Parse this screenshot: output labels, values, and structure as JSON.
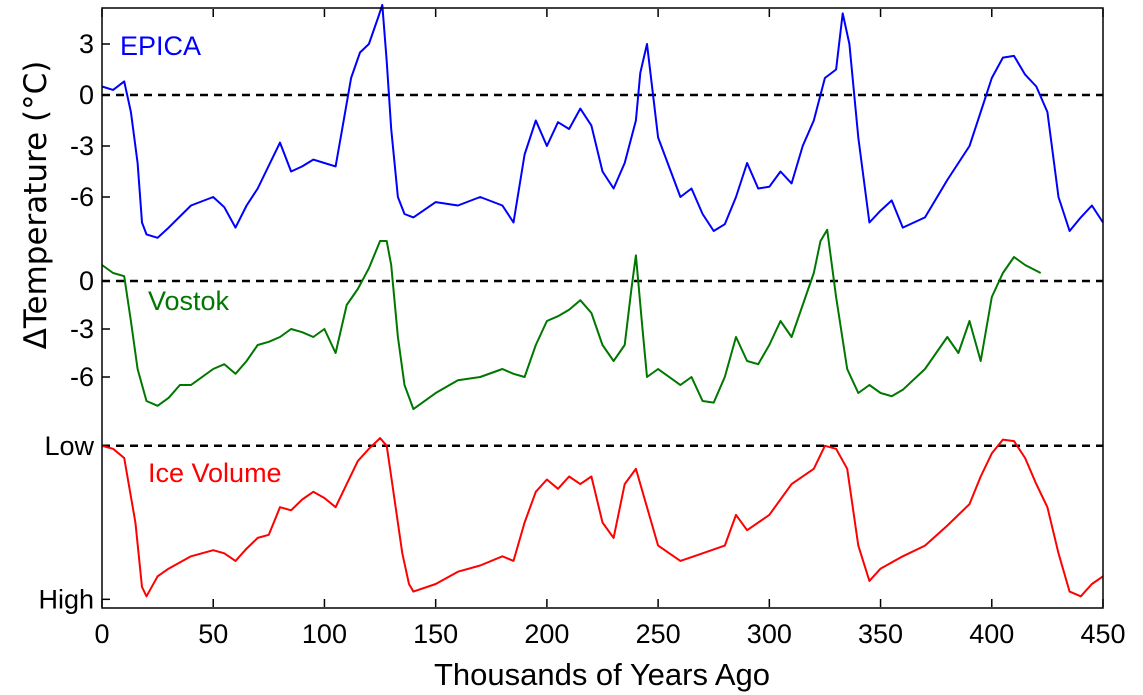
{
  "chart_data": {
    "type": "line",
    "title": "",
    "xlabel": "Thousands of Years Ago",
    "ylabel": "ΔTemperature (°C)",
    "xlim": [
      0,
      450
    ],
    "x_ticks": [
      "0",
      "50",
      "100",
      "150",
      "200",
      "250",
      "300",
      "350",
      "400",
      "450"
    ],
    "grid": false,
    "panels": [
      {
        "name": "EPICA",
        "color": "#0000ff",
        "y_ticks": [
          "3",
          "0",
          "-3",
          "-6"
        ],
        "y_tick_values": [
          3,
          0,
          -3,
          -6
        ],
        "ylim": [
          -9,
          5
        ],
        "reference_line": 0,
        "x": [
          0,
          5,
          10,
          13,
          16,
          18,
          20,
          25,
          30,
          40,
          50,
          55,
          60,
          65,
          70,
          80,
          85,
          90,
          95,
          100,
          105,
          108,
          112,
          116,
          120,
          124,
          126,
          128,
          130,
          133,
          136,
          140,
          150,
          160,
          170,
          180,
          185,
          190,
          195,
          200,
          205,
          210,
          215,
          220,
          225,
          230,
          235,
          240,
          242,
          245,
          250,
          260,
          265,
          270,
          275,
          280,
          285,
          290,
          295,
          300,
          305,
          310,
          315,
          320,
          325,
          330,
          333,
          336,
          340,
          345,
          350,
          355,
          360,
          370,
          380,
          390,
          395,
          400,
          405,
          410,
          415,
          420,
          425,
          430,
          435,
          440,
          445,
          450
        ],
        "values": [
          0.5,
          0.3,
          0.8,
          -1,
          -4,
          -7.5,
          -8.2,
          -8.4,
          -7.8,
          -6.5,
          -6.0,
          -6.6,
          -7.8,
          -6.5,
          -5.5,
          -2.8,
          -4.5,
          -4.2,
          -3.8,
          -4.0,
          -4.2,
          -2.0,
          1.0,
          2.5,
          3.0,
          4.5,
          5.3,
          2.0,
          -2.0,
          -6.0,
          -7.0,
          -7.2,
          -6.3,
          -6.5,
          -6.0,
          -6.5,
          -7.5,
          -3.5,
          -1.5,
          -3.0,
          -1.6,
          -2.0,
          -0.8,
          -1.8,
          -4.5,
          -5.5,
          -4.0,
          -1.5,
          1.3,
          3.0,
          -2.5,
          -6.0,
          -5.5,
          -7.0,
          -8.0,
          -7.6,
          -6.0,
          -4.0,
          -5.5,
          -5.4,
          -4.5,
          -5.2,
          -3.0,
          -1.5,
          1.0,
          1.5,
          4.8,
          3.0,
          -2.5,
          -7.5,
          -6.8,
          -6.2,
          -7.8,
          -7.2,
          -5.0,
          -3.0,
          -1.0,
          1.0,
          2.2,
          2.3,
          1.2,
          0.5,
          -1.0,
          -6.0,
          -8.0,
          -7.2,
          -6.5,
          -7.5
        ]
      },
      {
        "name": "Vostok",
        "color": "#007700",
        "y_ticks": [
          "0",
          "-3",
          "-6"
        ],
        "y_tick_values": [
          0,
          -3,
          -6
        ],
        "ylim": [
          -9,
          3.5
        ],
        "reference_line": 0,
        "x": [
          0,
          5,
          10,
          13,
          16,
          20,
          25,
          30,
          35,
          40,
          50,
          55,
          60,
          65,
          70,
          75,
          80,
          85,
          90,
          95,
          100,
          105,
          110,
          115,
          120,
          125,
          128,
          130,
          133,
          136,
          140,
          150,
          160,
          170,
          180,
          185,
          190,
          195,
          200,
          205,
          210,
          215,
          220,
          225,
          230,
          235,
          238,
          240,
          243,
          245,
          250,
          260,
          265,
          270,
          275,
          280,
          285,
          290,
          295,
          300,
          305,
          310,
          315,
          320,
          323,
          326,
          330,
          335,
          340,
          345,
          350,
          355,
          360,
          370,
          380,
          385,
          390,
          395,
          400,
          405,
          410,
          415,
          422
        ],
        "values": [
          1.0,
          0.5,
          0.3,
          -2.5,
          -5.5,
          -7.5,
          -7.8,
          -7.3,
          -6.5,
          -6.5,
          -5.5,
          -5.2,
          -5.8,
          -5.0,
          -4.0,
          -3.8,
          -3.5,
          -3.0,
          -3.2,
          -3.5,
          -3.0,
          -4.5,
          -1.5,
          -0.5,
          0.8,
          2.5,
          2.5,
          1.0,
          -3.5,
          -6.5,
          -8.0,
          -7.0,
          -6.2,
          -6.0,
          -5.5,
          -5.8,
          -6.0,
          -4.0,
          -2.5,
          -2.2,
          -1.8,
          -1.2,
          -2.0,
          -4.0,
          -5.0,
          -4.0,
          -0.5,
          1.6,
          -3.0,
          -6.0,
          -5.5,
          -6.5,
          -6.0,
          -7.5,
          -7.6,
          -6.0,
          -3.5,
          -5.0,
          -5.2,
          -4.0,
          -2.5,
          -3.5,
          -1.5,
          0.5,
          2.5,
          3.2,
          -1.0,
          -5.5,
          -7.0,
          -6.5,
          -7.0,
          -7.2,
          -6.8,
          -5.5,
          -3.5,
          -4.5,
          -2.5,
          -5.0,
          -1.0,
          0.5,
          1.5,
          1.0,
          0.5
        ]
      },
      {
        "name": "Ice Volume",
        "color": "#ff0000",
        "y_ticks": [
          "Low",
          "High"
        ],
        "y_tick_values": [
          1,
          0
        ],
        "ylim": [
          -0.05,
          1.07
        ],
        "reference_line": 1,
        "x": [
          0,
          5,
          10,
          15,
          18,
          20,
          25,
          30,
          40,
          50,
          55,
          60,
          65,
          70,
          75,
          80,
          85,
          90,
          95,
          100,
          105,
          110,
          115,
          120,
          125,
          128,
          130,
          135,
          138,
          140,
          150,
          160,
          170,
          180,
          185,
          190,
          195,
          200,
          205,
          210,
          215,
          220,
          225,
          230,
          235,
          240,
          245,
          250,
          260,
          270,
          280,
          285,
          290,
          300,
          310,
          320,
          325,
          330,
          335,
          340,
          345,
          350,
          360,
          370,
          380,
          390,
          395,
          400,
          405,
          410,
          415,
          420,
          425,
          430,
          435,
          440,
          445,
          450
        ],
        "values": [
          1.0,
          0.98,
          0.92,
          0.5,
          0.08,
          0.02,
          0.15,
          0.2,
          0.28,
          0.32,
          0.3,
          0.25,
          0.33,
          0.4,
          0.42,
          0.6,
          0.58,
          0.65,
          0.7,
          0.66,
          0.6,
          0.75,
          0.9,
          0.98,
          1.05,
          1.0,
          0.8,
          0.3,
          0.1,
          0.05,
          0.1,
          0.18,
          0.22,
          0.28,
          0.25,
          0.5,
          0.7,
          0.78,
          0.72,
          0.8,
          0.75,
          0.8,
          0.5,
          0.4,
          0.75,
          0.85,
          0.6,
          0.35,
          0.25,
          0.3,
          0.35,
          0.55,
          0.45,
          0.55,
          0.75,
          0.85,
          1.0,
          0.98,
          0.85,
          0.35,
          0.12,
          0.2,
          0.28,
          0.35,
          0.48,
          0.62,
          0.8,
          0.95,
          1.04,
          1.03,
          0.92,
          0.75,
          0.6,
          0.3,
          0.05,
          0.02,
          0.1,
          0.15
        ]
      }
    ]
  }
}
